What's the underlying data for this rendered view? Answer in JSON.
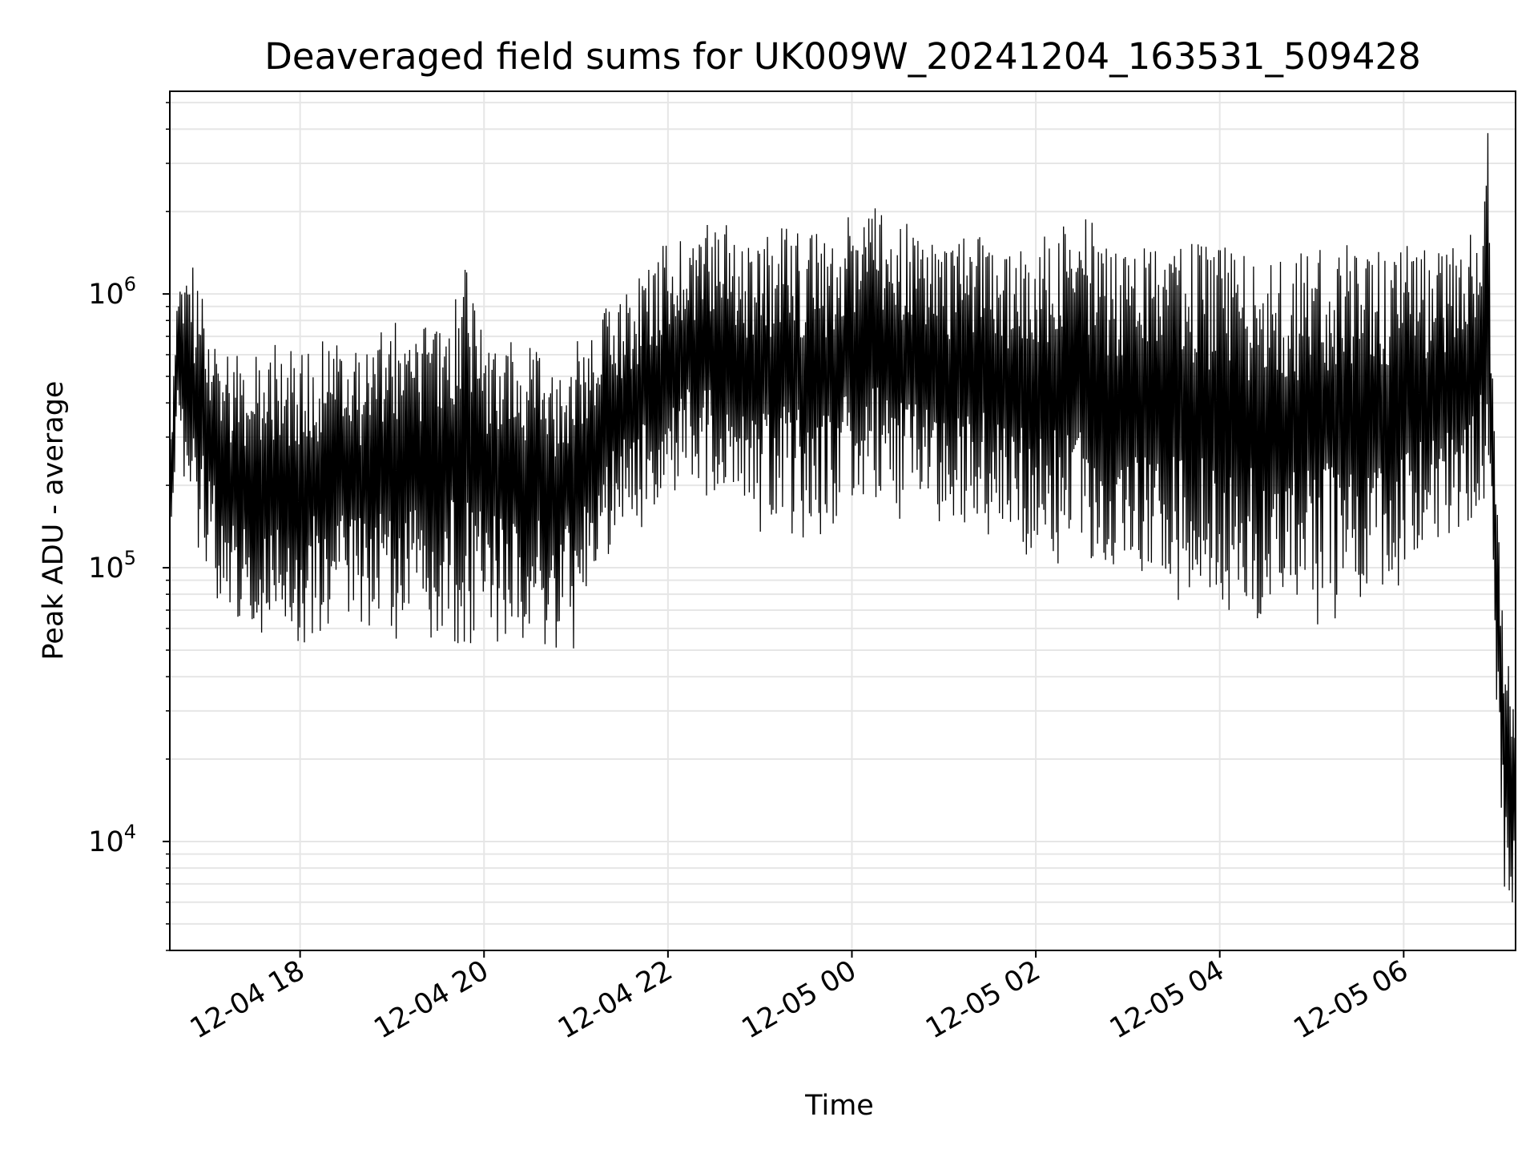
{
  "chart_data": {
    "type": "line",
    "title": "Deaveraged field sums for UK009W_20241204_163531_509428",
    "xlabel": "Time",
    "ylabel": "Peak ADU - average",
    "y_scale": "log",
    "grid": true,
    "legend": "none",
    "series_color": "#000000",
    "grid_color": "#e6e6e6",
    "xlim": [
      "2024-12-04 16:35",
      "2024-12-05 07:13"
    ],
    "ylim": [
      4000,
      5500000
    ],
    "x_ticks": [
      {
        "t": "2024-12-04 18:00",
        "label": "12-04 18"
      },
      {
        "t": "2024-12-04 20:00",
        "label": "12-04 20"
      },
      {
        "t": "2024-12-04 22:00",
        "label": "12-04 22"
      },
      {
        "t": "2024-12-05 00:00",
        "label": "12-05 00"
      },
      {
        "t": "2024-12-05 02:00",
        "label": "12-05 02"
      },
      {
        "t": "2024-12-05 04:00",
        "label": "12-05 04"
      },
      {
        "t": "2024-12-05 06:00",
        "label": "12-05 06"
      }
    ],
    "y_ticks": [
      {
        "value": 10000,
        "base": "10",
        "exp": "4"
      },
      {
        "value": 100000,
        "base": "10",
        "exp": "5"
      },
      {
        "value": 1000000,
        "base": "10",
        "exp": "6"
      }
    ],
    "series": [
      {
        "x": [
          "2024-12-04 16:35",
          "2024-12-04 16:40",
          "2024-12-04 16:45",
          "2024-12-04 16:50",
          "2024-12-04 17:00",
          "2024-12-04 17:10",
          "2024-12-04 17:20",
          "2024-12-04 17:30",
          "2024-12-04 17:40",
          "2024-12-04 17:50",
          "2024-12-04 18:00",
          "2024-12-04 18:15",
          "2024-12-04 18:30",
          "2024-12-04 18:45",
          "2024-12-04 19:00",
          "2024-12-04 19:15",
          "2024-12-04 19:30",
          "2024-12-04 19:45",
          "2024-12-04 20:00",
          "2024-12-04 20:15",
          "2024-12-04 20:30",
          "2024-12-04 20:45",
          "2024-12-04 21:00",
          "2024-12-04 21:10",
          "2024-12-04 21:20",
          "2024-12-04 21:30",
          "2024-12-04 21:45",
          "2024-12-04 22:00",
          "2024-12-04 22:15",
          "2024-12-04 22:30",
          "2024-12-04 22:45",
          "2024-12-04 23:00",
          "2024-12-04 23:15",
          "2024-12-04 23:30",
          "2024-12-04 23:45",
          "2024-12-05 00:00",
          "2024-12-05 00:15",
          "2024-12-05 00:30",
          "2024-12-05 00:45",
          "2024-12-05 01:00",
          "2024-12-05 01:15",
          "2024-12-05 01:30",
          "2024-12-05 01:45",
          "2024-12-05 02:00",
          "2024-12-05 02:15",
          "2024-12-05 02:30",
          "2024-12-05 02:45",
          "2024-12-05 03:00",
          "2024-12-05 03:15",
          "2024-12-05 03:30",
          "2024-12-05 03:45",
          "2024-12-05 04:00",
          "2024-12-05 04:15",
          "2024-12-05 04:30",
          "2024-12-05 04:45",
          "2024-12-05 05:00",
          "2024-12-05 05:15",
          "2024-12-05 05:30",
          "2024-12-05 05:45",
          "2024-12-05 06:00",
          "2024-12-05 06:15",
          "2024-12-05 06:30",
          "2024-12-05 06:45",
          "2024-12-05 06:55",
          "2024-12-05 07:00",
          "2024-12-05 07:05",
          "2024-12-05 07:10",
          "2024-12-05 07:13"
        ],
        "y_low": [
          110000,
          300000,
          200000,
          150000,
          100000,
          70000,
          65000,
          70000,
          60000,
          65000,
          60000,
          70000,
          65000,
          65000,
          65000,
          70000,
          65000,
          60000,
          65000,
          60000,
          65000,
          60000,
          55000,
          90000,
          120000,
          150000,
          160000,
          180000,
          200000,
          190000,
          170000,
          150000,
          160000,
          150000,
          150000,
          180000,
          200000,
          170000,
          160000,
          150000,
          160000,
          150000,
          140000,
          130000,
          120000,
          110000,
          100000,
          100000,
          90000,
          90000,
          90000,
          85000,
          80000,
          75000,
          75000,
          75000,
          80000,
          80000,
          90000,
          100000,
          120000,
          130000,
          150000,
          250000,
          40000,
          8000,
          6000,
          5000
        ],
        "y_high": [
          300000,
          1000000,
          1200000,
          1300000,
          900000,
          700000,
          650000,
          600000,
          700000,
          650000,
          600000,
          700000,
          650000,
          650000,
          800000,
          750000,
          800000,
          1400000,
          750000,
          700000,
          650000,
          600000,
          700000,
          800000,
          900000,
          1000000,
          1200000,
          1600000,
          1800000,
          1900000,
          1700000,
          1600000,
          1800000,
          1700000,
          1700000,
          2100000,
          2300000,
          1900000,
          1700000,
          1600000,
          1700000,
          1600000,
          1500000,
          1600000,
          1800000,
          2200000,
          1500000,
          1500000,
          1500000,
          1500000,
          1600000,
          1500000,
          1400000,
          1500000,
          1400000,
          1500000,
          1600000,
          1500000,
          1500000,
          1500000,
          1500000,
          1500000,
          1700000,
          4000000,
          200000,
          80000,
          50000,
          30000
        ]
      }
    ]
  }
}
